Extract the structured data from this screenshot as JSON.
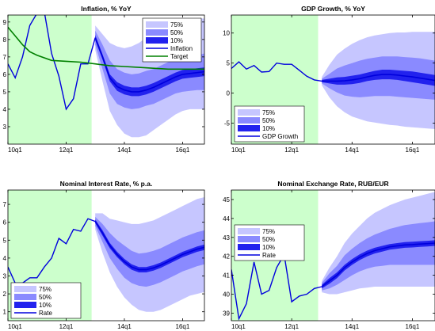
{
  "figure": {
    "colors": {
      "history_shade": "#ccffcc",
      "band_75": "#c6c6ff",
      "band_50": "#8a8aff",
      "band_10": "#2222ee",
      "central_line": "#0000dd",
      "target_line": "#008000"
    }
  },
  "chart_data": [
    {
      "type": "area",
      "title": "Inflation, % YoY",
      "xlabel": "",
      "ylabel": "",
      "x_ticks": [
        "10q1",
        "12q1",
        "14q1",
        "16q1"
      ],
      "y_ticks": [
        3,
        4,
        5,
        6,
        7,
        8,
        9
      ],
      "xlim": [
        0,
        27
      ],
      "ylim": [
        2,
        9.4
      ],
      "grid": false,
      "history_shaded_until": 11.5,
      "legend_position": "top-right",
      "legend": [
        "75%",
        "50%",
        "10%",
        "Inflation",
        "Target"
      ],
      "series": [
        {
          "name": "Inflation",
          "x": [
            0,
            1,
            2,
            3,
            4,
            5,
            6,
            7,
            8,
            9,
            10,
            11,
            12
          ],
          "y": [
            6.6,
            5.8,
            7,
            8.8,
            9.5,
            9.6,
            7.2,
            5.9,
            4,
            4.6,
            6.6,
            6.6,
            8.1
          ]
        },
        {
          "name": "Target",
          "x": [
            0,
            1,
            2,
            3,
            4,
            6,
            8,
            10,
            12,
            14,
            16,
            18,
            20,
            22,
            24,
            27
          ],
          "y": [
            8.7,
            8.2,
            7.7,
            7.3,
            7.1,
            6.8,
            6.75,
            6.7,
            6.6,
            6.5,
            6.45,
            6.4,
            6.35,
            6.3,
            6.3,
            6.3
          ]
        }
      ],
      "fan": {
        "x": [
          12,
          13,
          14,
          15,
          16,
          17,
          18,
          19,
          20,
          21,
          22,
          23,
          24,
          25,
          26,
          27
        ],
        "central": [
          8.1,
          7,
          5.8,
          5.3,
          5.1,
          5,
          5,
          5.1,
          5.25,
          5.45,
          5.65,
          5.85,
          6,
          6.05,
          6.1,
          6.15
        ],
        "p10": [
          [
            7.95,
            8.25
          ],
          [
            6.85,
            7.15
          ],
          [
            5.6,
            6
          ],
          [
            5.05,
            5.55
          ],
          [
            4.85,
            5.35
          ],
          [
            4.75,
            5.25
          ],
          [
            4.75,
            5.25
          ],
          [
            4.85,
            5.35
          ],
          [
            5,
            5.5
          ],
          [
            5.2,
            5.7
          ],
          [
            5.4,
            5.9
          ],
          [
            5.6,
            6.1
          ],
          [
            5.75,
            6.25
          ],
          [
            5.8,
            6.3
          ],
          [
            5.85,
            6.35
          ],
          [
            5.9,
            6.4
          ]
        ],
        "p50": [
          [
            7.7,
            8.5
          ],
          [
            6.3,
            7.7
          ],
          [
            4.9,
            6.8
          ],
          [
            4.3,
            6.3
          ],
          [
            4.1,
            6.1
          ],
          [
            4,
            6
          ],
          [
            4.05,
            6.05
          ],
          [
            4.2,
            6.2
          ],
          [
            4.3,
            6.3
          ],
          [
            4.5,
            6.5
          ],
          [
            4.7,
            6.7
          ],
          [
            4.9,
            6.9
          ],
          [
            5,
            7
          ],
          [
            5.05,
            7.05
          ],
          [
            5.1,
            7.1
          ],
          [
            5.1,
            7.2
          ]
        ],
        "p75": [
          [
            7.4,
            8.8
          ],
          [
            5.6,
            8.3
          ],
          [
            3.9,
            7.8
          ],
          [
            3.1,
            7.6
          ],
          [
            2.6,
            7.5
          ],
          [
            2.4,
            7.6
          ],
          [
            2.4,
            7.8
          ],
          [
            2.5,
            8.1
          ],
          [
            2.8,
            8.3
          ],
          [
            3.1,
            8.5
          ],
          [
            3.4,
            8.7
          ],
          [
            3.7,
            8.9
          ],
          [
            3.9,
            9
          ],
          [
            4,
            9.1
          ],
          [
            4,
            9.2
          ],
          [
            4,
            9.2
          ]
        ]
      }
    },
    {
      "type": "area",
      "title": "GDP Growth, % YoY",
      "xlabel": "",
      "ylabel": "",
      "x_ticks": [
        "10q1",
        "12q1",
        "14q1",
        "16q1"
      ],
      "y_ticks": [
        -5,
        0,
        5,
        10
      ],
      "xlim": [
        0,
        27
      ],
      "ylim": [
        -8.5,
        13
      ],
      "grid": false,
      "history_shaded_until": 11.5,
      "legend_position": "bottom-left",
      "legend": [
        "75%",
        "50%",
        "10%",
        "GDP Growth"
      ],
      "series": [
        {
          "name": "GDP Growth",
          "x": [
            0,
            1,
            2,
            3,
            4,
            5,
            6,
            7,
            8,
            9,
            10,
            11,
            12
          ],
          "y": [
            4.1,
            5.2,
            4,
            4.6,
            3.5,
            3.6,
            5,
            4.8,
            4.8,
            3.8,
            2.8,
            2.2,
            2
          ]
        }
      ],
      "fan": {
        "x": [
          12,
          13,
          14,
          15,
          16,
          17,
          18,
          19,
          20,
          21,
          22,
          23,
          24,
          25,
          26,
          27
        ],
        "central": [
          2,
          2,
          2,
          2.05,
          2.2,
          2.4,
          2.7,
          2.95,
          3.1,
          3.1,
          3,
          2.85,
          2.7,
          2.5,
          2.3,
          2.1
        ],
        "p10": [
          [
            1.8,
            2.2
          ],
          [
            1.6,
            2.4
          ],
          [
            1.4,
            2.6
          ],
          [
            1.4,
            2.7
          ],
          [
            1.5,
            2.9
          ],
          [
            1.7,
            3.1
          ],
          [
            2,
            3.4
          ],
          [
            2.2,
            3.7
          ],
          [
            2.3,
            3.9
          ],
          [
            2.3,
            3.9
          ],
          [
            2.2,
            3.8
          ],
          [
            2,
            3.7
          ],
          [
            1.8,
            3.6
          ],
          [
            1.6,
            3.4
          ],
          [
            1.4,
            3.2
          ],
          [
            1.2,
            3
          ]
        ],
        "p50": [
          [
            1.6,
            2.4
          ],
          [
            0.8,
            3.2
          ],
          [
            0.1,
            4.1
          ],
          [
            -0.4,
            4.6
          ],
          [
            -0.6,
            5
          ],
          [
            -0.7,
            5.4
          ],
          [
            -0.6,
            5.7
          ],
          [
            -0.5,
            5.9
          ],
          [
            -0.5,
            6.1
          ],
          [
            -0.5,
            6.1
          ],
          [
            -0.6,
            6.1
          ],
          [
            -0.7,
            6
          ],
          [
            -0.8,
            5.9
          ],
          [
            -0.9,
            5.8
          ],
          [
            -1,
            5.6
          ],
          [
            -1.1,
            5.4
          ]
        ],
        "p75": [
          [
            1.3,
            2.7
          ],
          [
            -0.7,
            4.7
          ],
          [
            -2.2,
            6.4
          ],
          [
            -3.2,
            7.4
          ],
          [
            -3.9,
            8.2
          ],
          [
            -4.3,
            8.8
          ],
          [
            -4.7,
            9.3
          ],
          [
            -4.9,
            9.6
          ],
          [
            -5.1,
            9.8
          ],
          [
            -5.3,
            10
          ],
          [
            -5.4,
            10.1
          ],
          [
            -5.6,
            10.1
          ],
          [
            -5.7,
            10.2
          ],
          [
            -5.8,
            10.2
          ],
          [
            -5.9,
            10.2
          ],
          [
            -6,
            10.2
          ]
        ]
      }
    },
    {
      "type": "area",
      "title": "Nominal Interest Rate, % p.a.",
      "xlabel": "",
      "ylabel": "",
      "x_ticks": [
        "10q1",
        "12q1",
        "14q1",
        "16q1"
      ],
      "y_ticks": [
        1,
        2,
        3,
        4,
        5,
        6,
        7
      ],
      "xlim": [
        0,
        27
      ],
      "ylim": [
        0.5,
        7.8
      ],
      "grid": false,
      "history_shaded_until": 11.5,
      "legend_position": "bottom-left",
      "legend": [
        "75%",
        "50%",
        "10%",
        "Rate"
      ],
      "series": [
        {
          "name": "Rate",
          "x": [
            0,
            1,
            2,
            3,
            4,
            5,
            6,
            7,
            8,
            9,
            10,
            11,
            12
          ],
          "y": [
            3.5,
            2.6,
            2.6,
            2.9,
            2.9,
            3.5,
            4,
            5.1,
            4.8,
            5.6,
            5.5,
            6.2,
            6.05
          ]
        }
      ],
      "fan": {
        "x": [
          12,
          13,
          14,
          15,
          16,
          17,
          18,
          19,
          20,
          21,
          22,
          23,
          24,
          25,
          26,
          27
        ],
        "central": [
          6.05,
          5.4,
          4.7,
          4.2,
          3.8,
          3.5,
          3.35,
          3.35,
          3.45,
          3.6,
          3.8,
          4,
          4.2,
          4.35,
          4.5,
          4.6
        ],
        "p10": [
          [
            5.95,
            6.15
          ],
          [
            5.25,
            5.55
          ],
          [
            4.55,
            4.85
          ],
          [
            4.05,
            4.35
          ],
          [
            3.65,
            3.95
          ],
          [
            3.35,
            3.65
          ],
          [
            3.2,
            3.5
          ],
          [
            3.2,
            3.5
          ],
          [
            3.3,
            3.6
          ],
          [
            3.45,
            3.75
          ],
          [
            3.65,
            3.95
          ],
          [
            3.85,
            4.15
          ],
          [
            4.05,
            4.35
          ],
          [
            4.2,
            4.5
          ],
          [
            4.35,
            4.65
          ],
          [
            4.45,
            4.75
          ]
        ],
        "p50": [
          [
            5.8,
            6.3
          ],
          [
            4.9,
            5.9
          ],
          [
            4,
            5.4
          ],
          [
            3.4,
            5
          ],
          [
            2.9,
            4.7
          ],
          [
            2.6,
            4.4
          ],
          [
            2.45,
            4.25
          ],
          [
            2.4,
            4.3
          ],
          [
            2.5,
            4.4
          ],
          [
            2.65,
            4.55
          ],
          [
            2.85,
            4.75
          ],
          [
            3.05,
            4.95
          ],
          [
            3.25,
            5.15
          ],
          [
            3.4,
            5.3
          ],
          [
            3.55,
            5.45
          ],
          [
            3.65,
            5.55
          ]
        ],
        "p75": [
          [
            5.6,
            6.5
          ],
          [
            4.3,
            6.5
          ],
          [
            3.2,
            6.2
          ],
          [
            2.4,
            6.1
          ],
          [
            1.8,
            6
          ],
          [
            1.4,
            5.9
          ],
          [
            1.1,
            5.9
          ],
          [
            1,
            6
          ],
          [
            1,
            6.1
          ],
          [
            1.1,
            6.3
          ],
          [
            1.3,
            6.5
          ],
          [
            1.5,
            6.7
          ],
          [
            1.7,
            6.9
          ],
          [
            1.9,
            7.1
          ],
          [
            2,
            7.3
          ],
          [
            2.1,
            7.4
          ]
        ]
      }
    },
    {
      "type": "area",
      "title": "Nominal Exchange Rate, RUB/EUR",
      "xlabel": "",
      "ylabel": "",
      "x_ticks": [
        "10q1",
        "12q1",
        "14q1",
        "16q1"
      ],
      "y_ticks": [
        39,
        40,
        41,
        42,
        43,
        44,
        45
      ],
      "xlim": [
        0,
        27
      ],
      "ylim": [
        38.6,
        45.5
      ],
      "grid": false,
      "history_shaded_until": 11.5,
      "legend_position": "left",
      "legend": [
        "75%",
        "50%",
        "10%",
        "Rate"
      ],
      "series": [
        {
          "name": "Rate",
          "x": [
            0,
            1,
            2,
            3,
            4,
            5,
            6,
            7,
            8,
            9,
            10,
            11,
            12
          ],
          "y": [
            41.3,
            38.7,
            39.5,
            41.7,
            40,
            40.2,
            41.4,
            42.1,
            39.6,
            39.9,
            40,
            40.3,
            40.4
          ]
        }
      ],
      "fan": {
        "x": [
          12,
          13,
          14,
          15,
          16,
          17,
          18,
          19,
          20,
          21,
          22,
          23,
          24,
          25,
          26,
          27
        ],
        "central": [
          40.4,
          40.7,
          41,
          41.4,
          41.7,
          41.95,
          42.15,
          42.3,
          42.4,
          42.5,
          42.55,
          42.6,
          42.62,
          42.65,
          42.67,
          42.7
        ],
        "p10": [
          [
            40.3,
            40.5
          ],
          [
            40.55,
            40.85
          ],
          [
            40.85,
            41.15
          ],
          [
            41.25,
            41.55
          ],
          [
            41.55,
            41.85
          ],
          [
            41.8,
            42.1
          ],
          [
            42,
            42.3
          ],
          [
            42.15,
            42.45
          ],
          [
            42.25,
            42.55
          ],
          [
            42.35,
            42.65
          ],
          [
            42.4,
            42.7
          ],
          [
            42.45,
            42.75
          ],
          [
            42.47,
            42.77
          ],
          [
            42.5,
            42.8
          ],
          [
            42.52,
            42.82
          ],
          [
            42.55,
            42.85
          ]
        ],
        "p50": [
          [
            40.2,
            40.6
          ],
          [
            40.3,
            41.1
          ],
          [
            40.5,
            41.5
          ],
          [
            40.75,
            42.05
          ],
          [
            41,
            42.4
          ],
          [
            41.2,
            42.7
          ],
          [
            41.35,
            42.95
          ],
          [
            41.45,
            43.15
          ],
          [
            41.5,
            43.3
          ],
          [
            41.55,
            43.45
          ],
          [
            41.55,
            43.55
          ],
          [
            41.55,
            43.65
          ],
          [
            41.55,
            43.7
          ],
          [
            41.55,
            43.75
          ],
          [
            41.55,
            43.8
          ],
          [
            41.55,
            43.85
          ]
        ],
        "p75": [
          [
            40.1,
            40.7
          ],
          [
            40,
            41.4
          ],
          [
            40,
            42
          ],
          [
            40.1,
            42.7
          ],
          [
            40.2,
            43.2
          ],
          [
            40.3,
            43.6
          ],
          [
            40.35,
            44
          ],
          [
            40.4,
            44.3
          ],
          [
            40.4,
            44.5
          ],
          [
            40.4,
            44.7
          ],
          [
            40.4,
            44.85
          ],
          [
            40.4,
            45
          ],
          [
            40.4,
            45.1
          ],
          [
            40.4,
            45.2
          ],
          [
            40.4,
            45.3
          ],
          [
            40.4,
            45.4
          ]
        ]
      }
    }
  ]
}
